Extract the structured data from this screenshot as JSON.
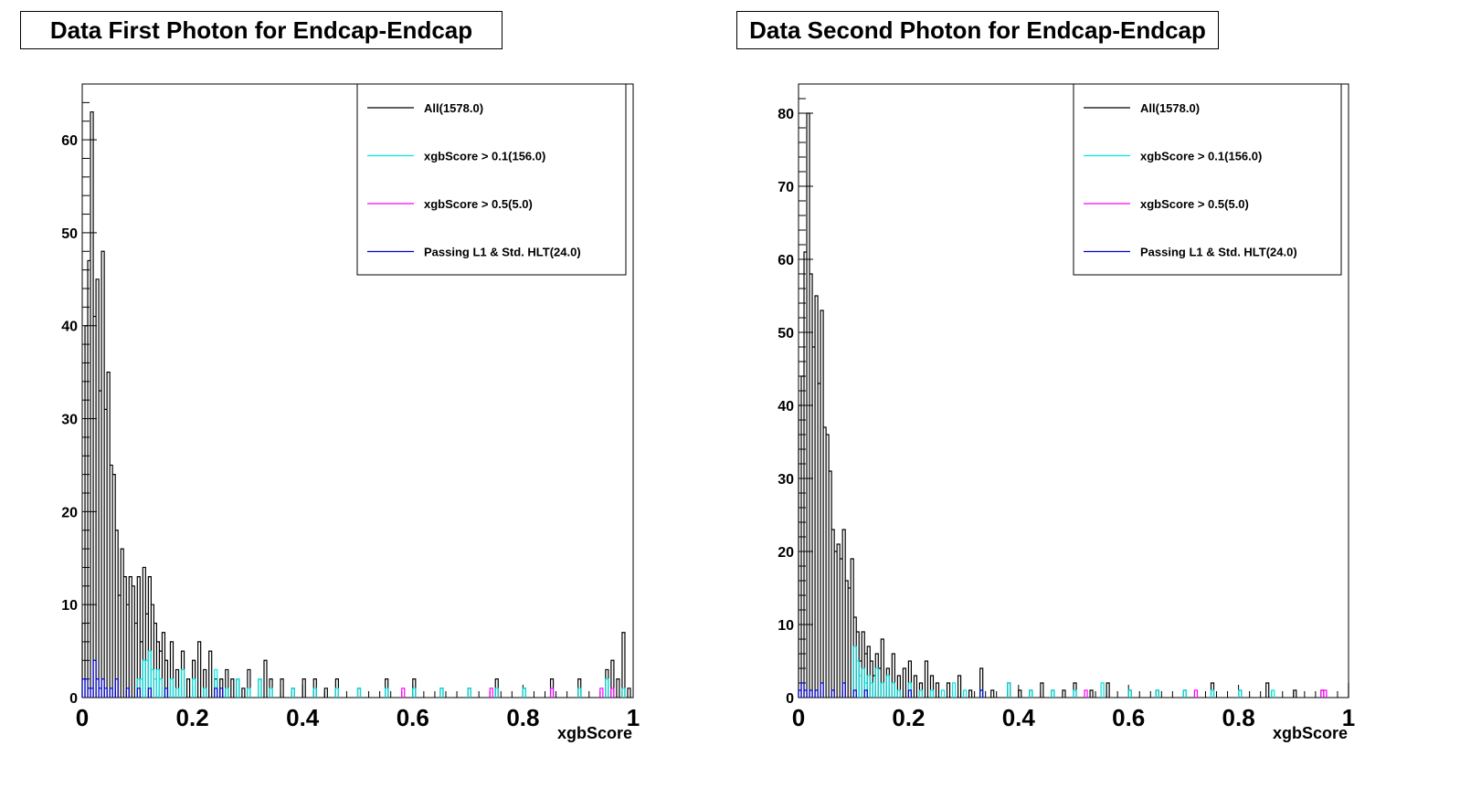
{
  "chart_data": [
    {
      "type": "line",
      "title": "Data First Photon for Endcap-Endcap",
      "xlabel": "xgbScore",
      "ylabel": "",
      "xlim": [
        0,
        1
      ],
      "ylim": [
        0,
        66
      ],
      "x_ticks": [
        "0",
        "0.2",
        "0.4",
        "0.6",
        "0.8",
        "1"
      ],
      "y_ticks": [
        "0",
        "10",
        "20",
        "30",
        "40",
        "50",
        "60"
      ],
      "legend_position": "top-right",
      "bin_width": 0.005,
      "series": [
        {
          "name": "All(1578.0)",
          "color": "#000000",
          "x": [
            0.0,
            0.005,
            0.01,
            0.015,
            0.02,
            0.025,
            0.03,
            0.035,
            0.04,
            0.045,
            0.05,
            0.055,
            0.06,
            0.065,
            0.07,
            0.075,
            0.08,
            0.085,
            0.09,
            0.095,
            0.1,
            0.105,
            0.11,
            0.115,
            0.12,
            0.125,
            0.13,
            0.135,
            0.14,
            0.145,
            0.15,
            0.16,
            0.17,
            0.18,
            0.19,
            0.2,
            0.21,
            0.22,
            0.23,
            0.24,
            0.25,
            0.26,
            0.27,
            0.28,
            0.29,
            0.3,
            0.32,
            0.33,
            0.34,
            0.36,
            0.38,
            0.4,
            0.42,
            0.44,
            0.46,
            0.5,
            0.55,
            0.6,
            0.65,
            0.7,
            0.75,
            0.8,
            0.85,
            0.9,
            0.95,
            0.96,
            0.97,
            0.98,
            0.99
          ],
          "y": [
            8,
            40,
            47,
            63,
            41,
            45,
            33,
            48,
            31,
            35,
            25,
            24,
            18,
            11,
            16,
            13,
            10,
            13,
            12,
            8,
            13,
            6,
            14,
            9,
            13,
            10,
            8,
            6,
            5,
            7,
            4,
            6,
            3,
            5,
            2,
            4,
            6,
            3,
            5,
            2,
            2,
            3,
            2,
            2,
            1,
            3,
            2,
            4,
            2,
            2,
            1,
            2,
            2,
            1,
            2,
            1,
            2,
            2,
            1,
            1,
            2,
            1,
            2,
            2,
            3,
            4,
            2,
            7,
            1
          ]
        },
        {
          "name": "xgbScore > 0.1(156.0)",
          "color": "#00e5e5",
          "x": [
            0.1,
            0.105,
            0.11,
            0.115,
            0.12,
            0.125,
            0.13,
            0.135,
            0.14,
            0.15,
            0.16,
            0.17,
            0.18,
            0.2,
            0.22,
            0.24,
            0.26,
            0.28,
            0.3,
            0.32,
            0.34,
            0.38,
            0.42,
            0.46,
            0.5,
            0.55,
            0.6,
            0.65,
            0.7,
            0.75,
            0.8,
            0.85,
            0.9,
            0.95,
            0.98
          ],
          "y": [
            2,
            2,
            4,
            4,
            5,
            3,
            2,
            3,
            2,
            1,
            2,
            1,
            3,
            2,
            1,
            3,
            1,
            2,
            1,
            2,
            1,
            1,
            1,
            1,
            1,
            1,
            1,
            1,
            1,
            1,
            1,
            1,
            1,
            2,
            1
          ]
        },
        {
          "name": "xgbScore > 0.5(5.0)",
          "color": "#ff00ff",
          "x": [
            0.58,
            0.74,
            0.85,
            0.94,
            0.96
          ],
          "y": [
            1,
            1,
            1,
            1,
            1
          ]
        },
        {
          "name": "Passing L1 & Std. HLT(24.0)",
          "color": "#0000cc",
          "x": [
            0.0,
            0.005,
            0.01,
            0.015,
            0.02,
            0.025,
            0.03,
            0.035,
            0.04,
            0.05,
            0.06,
            0.08,
            0.1,
            0.12,
            0.15,
            0.24,
            0.25
          ],
          "y": [
            2,
            2,
            1,
            1,
            4,
            2,
            1,
            2,
            1,
            1,
            2,
            1,
            1,
            1,
            1,
            1,
            1
          ]
        }
      ]
    },
    {
      "type": "line",
      "title": "Data Second Photon for Endcap-Endcap",
      "xlabel": "xgbScore",
      "ylabel": "",
      "xlim": [
        0,
        1
      ],
      "ylim": [
        0,
        84
      ],
      "x_ticks": [
        "0",
        "0.2",
        "0.4",
        "0.6",
        "0.8",
        "1"
      ],
      "y_ticks": [
        "0",
        "10",
        "20",
        "30",
        "40",
        "50",
        "60",
        "70",
        "80"
      ],
      "legend_position": "top-right",
      "bin_width": 0.005,
      "series": [
        {
          "name": "All(1578.0)",
          "color": "#000000",
          "x": [
            0.0,
            0.005,
            0.01,
            0.015,
            0.02,
            0.025,
            0.03,
            0.035,
            0.04,
            0.045,
            0.05,
            0.055,
            0.06,
            0.065,
            0.07,
            0.075,
            0.08,
            0.085,
            0.09,
            0.095,
            0.1,
            0.105,
            0.11,
            0.115,
            0.12,
            0.125,
            0.13,
            0.135,
            0.14,
            0.145,
            0.15,
            0.16,
            0.17,
            0.18,
            0.19,
            0.2,
            0.21,
            0.22,
            0.23,
            0.24,
            0.25,
            0.27,
            0.29,
            0.31,
            0.33,
            0.35,
            0.38,
            0.4,
            0.42,
            0.44,
            0.46,
            0.48,
            0.5,
            0.53,
            0.56,
            0.6,
            0.65,
            0.7,
            0.75,
            0.8,
            0.85,
            0.9,
            0.95,
            1.0
          ],
          "y": [
            40,
            44,
            61,
            80,
            58,
            48,
            55,
            43,
            53,
            37,
            36,
            31,
            23,
            20,
            21,
            19,
            23,
            16,
            15,
            19,
            11,
            9,
            5,
            9,
            6,
            7,
            5,
            3,
            6,
            4,
            8,
            4,
            6,
            3,
            4,
            5,
            3,
            2,
            5,
            3,
            2,
            2,
            3,
            1,
            4,
            1,
            2,
            1,
            1,
            2,
            1,
            1,
            2,
            1,
            2,
            1,
            1,
            1,
            2,
            1,
            2,
            1,
            1,
            2
          ]
        },
        {
          "name": "xgbScore > 0.1(156.0)",
          "color": "#00e5e5",
          "x": [
            0.1,
            0.105,
            0.11,
            0.115,
            0.12,
            0.125,
            0.13,
            0.14,
            0.15,
            0.16,
            0.17,
            0.18,
            0.2,
            0.22,
            0.24,
            0.26,
            0.28,
            0.3,
            0.33,
            0.38,
            0.42,
            0.46,
            0.5,
            0.55,
            0.6,
            0.65,
            0.7,
            0.75,
            0.8,
            0.86
          ],
          "y": [
            7,
            5,
            3,
            4,
            2,
            3,
            2,
            4,
            2,
            3,
            2,
            1,
            2,
            1,
            1,
            1,
            2,
            1,
            1,
            2,
            1,
            1,
            1,
            2,
            1,
            1,
            1,
            1,
            1,
            1
          ]
        },
        {
          "name": "xgbScore > 0.5(5.0)",
          "color": "#ff00ff",
          "x": [
            0.52,
            0.72,
            0.95,
            0.955
          ],
          "y": [
            1,
            1,
            1,
            1
          ]
        },
        {
          "name": "Passing L1 & Std. HLT(24.0)",
          "color": "#0000cc",
          "x": [
            0.0,
            0.005,
            0.01,
            0.02,
            0.03,
            0.04,
            0.06,
            0.08,
            0.1,
            0.12,
            0.2,
            0.33
          ],
          "y": [
            1,
            2,
            1,
            1,
            1,
            2,
            1,
            2,
            1,
            1,
            1,
            1
          ]
        }
      ]
    }
  ]
}
